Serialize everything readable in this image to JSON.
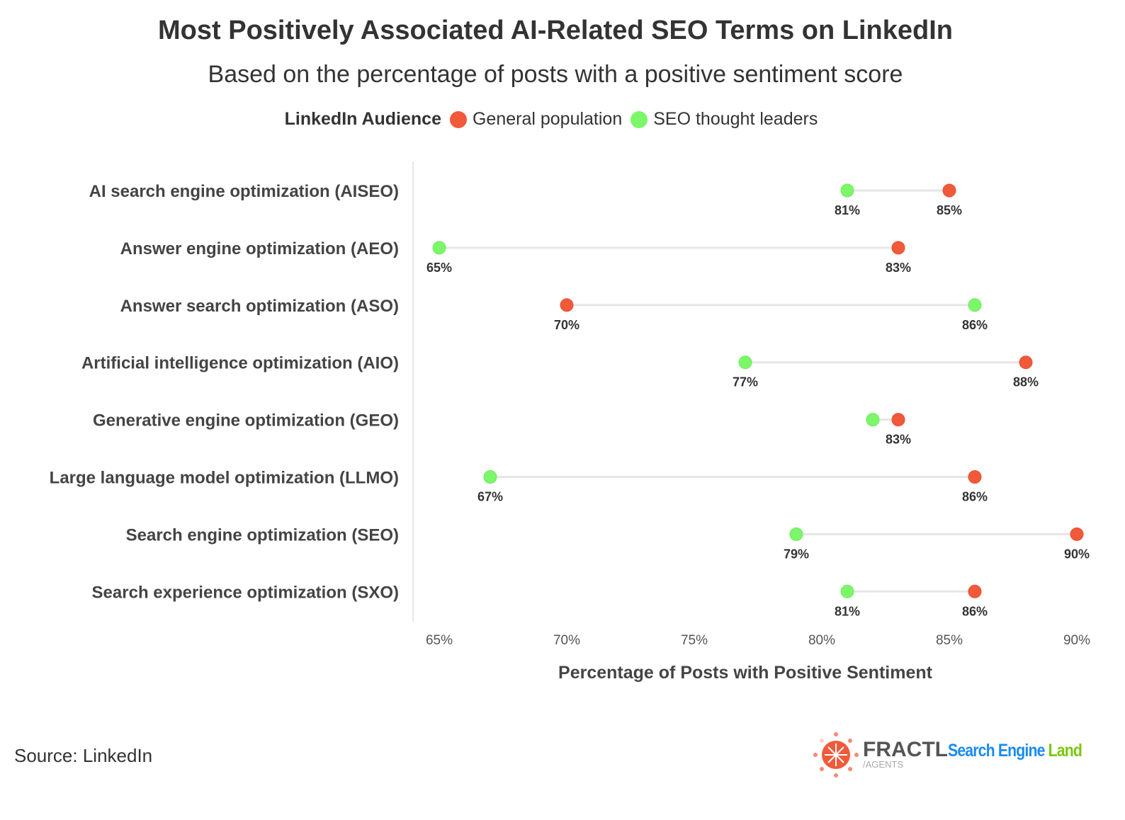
{
  "chart_data": {
    "type": "dumbbell",
    "title": "Most Positively Associated AI-Related SEO Terms on LinkedIn",
    "subtitle": "Based on the percentage of posts with a positive sentiment score",
    "legend_title": "LinkedIn Audience",
    "legend_placement": "top",
    "xlabel": "Percentage of Posts with Positive Sentiment",
    "xlim": [
      64,
      90.5
    ],
    "xticks": [
      65,
      70,
      75,
      80,
      85,
      90
    ],
    "xtick_labels": [
      "65%",
      "70%",
      "75%",
      "80%",
      "85%",
      "90%"
    ],
    "grid": false,
    "categories": [
      "AI search engine optimization (AISEO)",
      "Answer engine optimization (AEO)",
      "Answer search optimization (ASO)",
      "Artificial intelligence optimization (AIO)",
      "Generative engine optimization (GEO)",
      "Large language model optimization (LLMO)",
      "Search engine optimization (SEO)",
      "Search experience optimization (SXO)"
    ],
    "series": [
      {
        "name": "General population",
        "color": "#f05a3a",
        "values": [
          85,
          83,
          70,
          88,
          83,
          86,
          90,
          86
        ],
        "labels_shown": [
          true,
          true,
          true,
          true,
          true,
          true,
          true,
          true
        ]
      },
      {
        "name": "SEO thought leaders",
        "color": "#7cf76a",
        "values": [
          81,
          65,
          86,
          77,
          82,
          67,
          79,
          81
        ],
        "labels_shown": [
          true,
          true,
          true,
          true,
          false,
          true,
          true,
          true
        ]
      }
    ]
  },
  "source": "Source: LinkedIn",
  "logos": {
    "fractl": "FRACTL",
    "fractl_sub": "/AGENTS",
    "sel_a": "Search Engine ",
    "sel_b": "Land"
  }
}
